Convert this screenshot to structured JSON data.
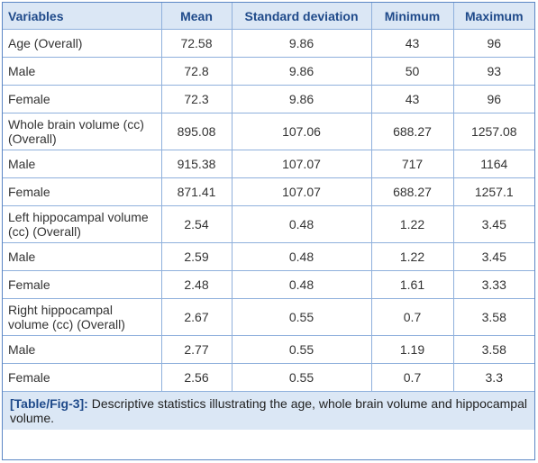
{
  "table": {
    "headers": [
      "Variables",
      "Mean",
      "Standard deviation",
      "Minimum",
      "Maximum"
    ],
    "rows": [
      {
        "label": "Age (Overall)",
        "mean": "72.58",
        "sd": "9.86",
        "min": "43",
        "max": "96"
      },
      {
        "label": "Male",
        "mean": "72.8",
        "sd": "9.86",
        "min": "50",
        "max": "93"
      },
      {
        "label": "Female",
        "mean": "72.3",
        "sd": "9.86",
        "min": "43",
        "max": "96"
      },
      {
        "label": "Whole brain volume (cc) (Overall)",
        "mean": "895.08",
        "sd": "107.06",
        "min": "688.27",
        "max": "1257.08"
      },
      {
        "label": "Male",
        "mean": "915.38",
        "sd": "107.07",
        "min": "717",
        "max": "1164"
      },
      {
        "label": "Female",
        "mean": "871.41",
        "sd": "107.07",
        "min": "688.27",
        "max": "1257.1"
      },
      {
        "label": "Left hippocampal volume (cc) (Overall)",
        "mean": "2.54",
        "sd": "0.48",
        "min": "1.22",
        "max": "3.45"
      },
      {
        "label": "Male",
        "mean": "2.59",
        "sd": "0.48",
        "min": "1.22",
        "max": "3.45"
      },
      {
        "label": "Female",
        "mean": "2.48",
        "sd": "0.48",
        "min": "1.61",
        "max": "3.33"
      },
      {
        "label": "Right hippocampal volume (cc) (Overall)",
        "mean": "2.67",
        "sd": "0.55",
        "min": "0.7",
        "max": "3.58"
      },
      {
        "label": "Male",
        "mean": "2.77",
        "sd": "0.55",
        "min": "1.19",
        "max": "3.58"
      },
      {
        "label": "Female",
        "mean": "2.56",
        "sd": "0.55",
        "min": "0.7",
        "max": "3.3"
      }
    ]
  },
  "caption": {
    "tag": "[Table/Fig-3]:",
    "text": " Descriptive statistics illustrating the age, whole brain volume and hippocampal volume."
  },
  "colors": {
    "header_bg": "#dbe7f5",
    "header_text": "#1f4a8a",
    "grid": "#8fb0dc",
    "border": "#5b86c5"
  }
}
